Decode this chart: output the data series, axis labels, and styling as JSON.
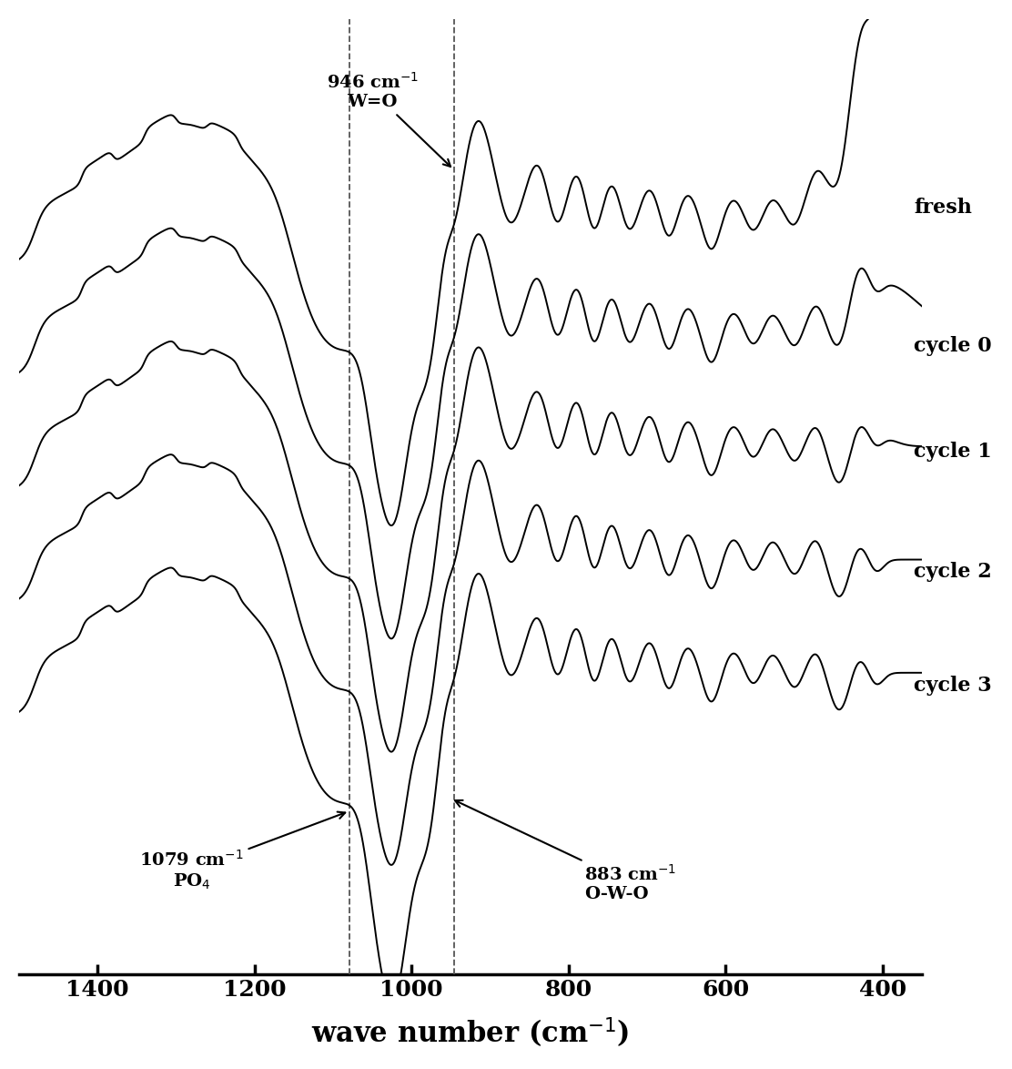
{
  "xlabel": "wave number (cm$^{-1}$)",
  "xlim": [
    1500,
    350
  ],
  "ylim": [
    -10,
    28
  ],
  "xticks": [
    1400,
    1200,
    1000,
    800,
    600,
    400
  ],
  "dashed_lines": [
    1079,
    946
  ],
  "labels": [
    "fresh",
    "cycle 0",
    "cycle 1",
    "cycle 2",
    "cycle 3"
  ],
  "offsets": [
    18.0,
    13.5,
    9.0,
    4.5,
    0.0
  ],
  "line_color": "#000000",
  "bg_color": "#ffffff",
  "lw": 1.4
}
